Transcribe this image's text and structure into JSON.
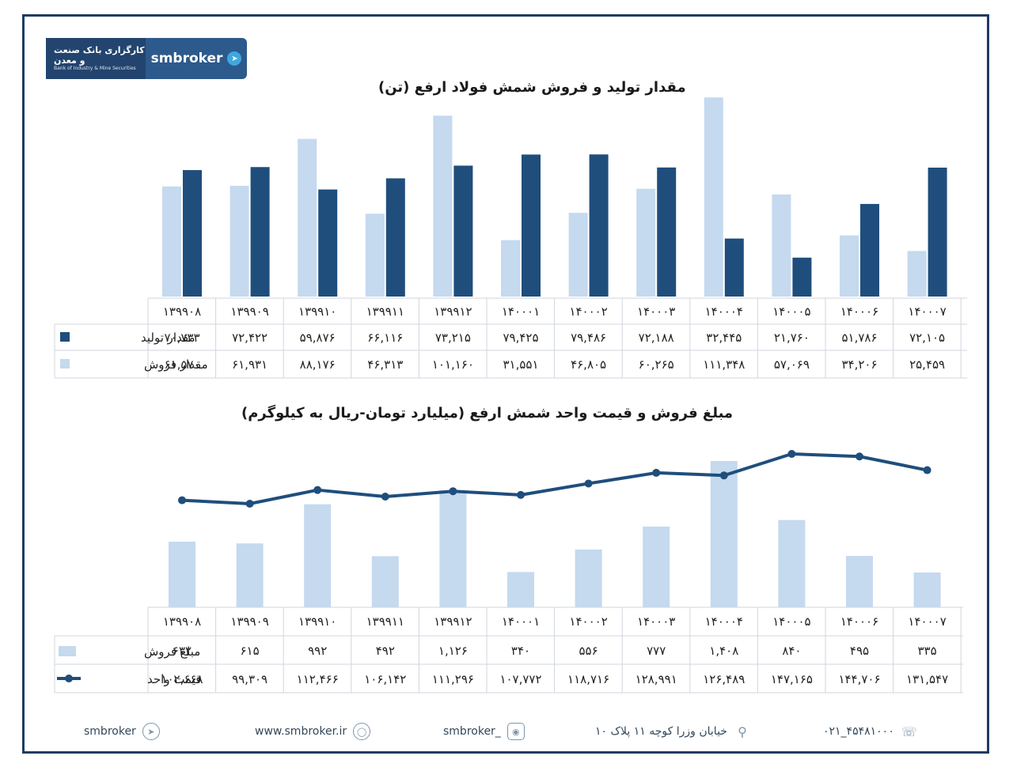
{
  "logo": {
    "fa_text": "کارگزاری بانک صنعت و معدن",
    "en_text": "Bank of Industry & Mine Securities",
    "brand": "smbroker"
  },
  "colors": {
    "dark_bar": "#1f4e7c",
    "light_bar": "#c5d9ef",
    "line": "#1f4e7c",
    "frame": "#1f3b63"
  },
  "chart_data": [
    {
      "type": "bar",
      "title": "مقدار تولید و فروش شمش فولاد ارفع (تن)",
      "categories": [
        "۱۳۹۹۰۸",
        "۱۳۹۹۰۹",
        "۱۳۹۹۱۰",
        "۱۳۹۹۱۱",
        "۱۳۹۹۱۲",
        "۱۴۰۰۰۱",
        "۱۴۰۰۰۲",
        "۱۴۰۰۰۳",
        "۱۴۰۰۰۴",
        "۱۴۰۰۰۵",
        "۱۴۰۰۰۶",
        "۱۴۰۰۰۷"
      ],
      "series": [
        {
          "name": "مقدار تولید",
          "color": "#1f4e7c",
          "values": [
            70733,
            72422,
            59876,
            66116,
            73215,
            79425,
            79486,
            72188,
            32445,
            21760,
            51786,
            72105
          ],
          "labels": [
            "۷۰,۷۳۳",
            "۷۲,۴۲۲",
            "۵۹,۸۷۶",
            "۶۶,۱۱۶",
            "۷۳,۲۱۵",
            "۷۹,۴۲۵",
            "۷۹,۴۸۶",
            "۷۲,۱۸۸",
            "۳۲,۴۴۵",
            "۲۱,۷۶۰",
            "۵۱,۷۸۶",
            "۷۲,۱۰۵"
          ]
        },
        {
          "name": "مقدار فروش",
          "color": "#c5d9ef",
          "values": [
            61570,
            61931,
            88176,
            46313,
            101160,
            31551,
            46805,
            60265,
            111348,
            57069,
            34206,
            25459
          ],
          "labels": [
            "۶۱,۵۷۰",
            "۶۱,۹۳۱",
            "۸۸,۱۷۶",
            "۴۶,۳۱۳",
            "۱۰۱,۱۶۰",
            "۳۱,۵۵۱",
            "۴۶,۸۰۵",
            "۶۰,۲۶۵",
            "۱۱۱,۳۴۸",
            "۵۷,۰۶۹",
            "۳۴,۲۰۶",
            "۲۵,۴۵۹"
          ]
        }
      ]
    },
    {
      "type": "bar+line",
      "title": "مبلغ فروش و قیمت واحد شمش ارفع (میلیارد تومان-ریال به کیلوگرم)",
      "categories": [
        "۱۳۹۹۰۸",
        "۱۳۹۹۰۹",
        "۱۳۹۹۱۰",
        "۱۳۹۹۱۱",
        "۱۳۹۹۱۲",
        "۱۴۰۰۰۱",
        "۱۴۰۰۰۲",
        "۱۴۰۰۰۳",
        "۱۴۰۰۰۴",
        "۱۴۰۰۰۵",
        "۱۴۰۰۰۶",
        "۱۴۰۰۰۷"
      ],
      "series": [
        {
          "name": "مبلغ فروش",
          "type": "bar",
          "color": "#c5d9ef",
          "values": [
            632,
            615,
            992,
            492,
            1126,
            340,
            556,
            777,
            1408,
            840,
            495,
            335
          ],
          "labels": [
            "۶۳۲",
            "۶۱۵",
            "۹۹۲",
            "۴۹۲",
            "۱,۱۲۶",
            "۳۴۰",
            "۵۵۶",
            "۷۷۷",
            "۱,۴۰۸",
            "۸۴۰",
            "۴۹۵",
            "۳۳۵"
          ]
        },
        {
          "name": "قیمت واحد",
          "type": "line",
          "color": "#1f4e7c",
          "values": [
            102668,
            99309,
            112466,
            106142,
            111296,
            107772,
            118716,
            128991,
            126489,
            147165,
            144706,
            131547
          ],
          "labels": [
            "۱۰۲,۶۶۸",
            "۹۹,۳۰۹",
            "۱۱۲,۴۶۶",
            "۱۰۶,۱۴۲",
            "۱۱۱,۲۹۶",
            "۱۰۷,۷۷۲",
            "۱۱۸,۷۱۶",
            "۱۲۸,۹۹۱",
            "۱۲۶,۴۸۹",
            "۱۴۷,۱۶۵",
            "۱۴۴,۷۰۶",
            "۱۳۱,۵۴۷"
          ]
        }
      ]
    }
  ],
  "footer": {
    "telegram": "smbroker",
    "website": "www.smbroker.ir",
    "instagram": "smbroker_",
    "address": "خیابان وزرا کوچه ۱۱ پلاک ۱۰",
    "phone": "۰۲۱_۴۵۴۸۱۰۰۰"
  }
}
